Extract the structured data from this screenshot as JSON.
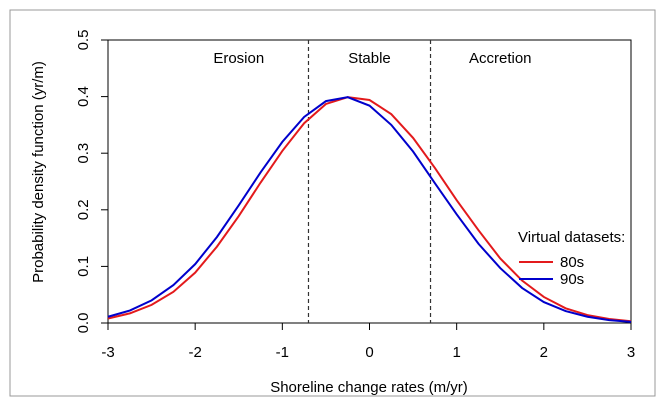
{
  "chart_data": {
    "type": "line",
    "title": "",
    "xlabel": "Shoreline change rates (m/yr)",
    "ylabel": "Probability density function (yr/m)",
    "xlim": [
      -3,
      3
    ],
    "ylim": [
      0,
      0.5
    ],
    "x_ticks": [
      -3,
      -2,
      -1,
      0,
      1,
      2,
      3
    ],
    "y_ticks": [
      0.0,
      0.1,
      0.2,
      0.3,
      0.4,
      0.5
    ],
    "x_tick_labels": [
      "-3",
      "-2",
      "-1",
      "0",
      "1",
      "2",
      "3"
    ],
    "y_tick_labels": [
      "0.0",
      "0.1",
      "0.2",
      "0.3",
      "0.4",
      "0.5"
    ],
    "grid": false,
    "vlines": [
      -0.7,
      0.7
    ],
    "regions": [
      {
        "label": "Erosion",
        "x": -1.5
      },
      {
        "label": "Stable",
        "x": 0
      },
      {
        "label": "Accretion",
        "x": 1.5
      }
    ],
    "legend": {
      "title": "Virtual datasets:",
      "position": "right"
    },
    "series": [
      {
        "name": "80s",
        "color": "#e31a1c",
        "x": [
          -3,
          -2.75,
          -2.5,
          -2.25,
          -2,
          -1.75,
          -1.5,
          -1.25,
          -1,
          -0.75,
          -0.5,
          -0.25,
          0,
          0.25,
          0.5,
          0.75,
          1,
          1.25,
          1.5,
          1.75,
          2,
          2.25,
          2.5,
          2.75,
          3
        ],
        "y": [
          0.008,
          0.017,
          0.032,
          0.055,
          0.089,
          0.135,
          0.189,
          0.248,
          0.304,
          0.353,
          0.387,
          0.399,
          0.394,
          0.369,
          0.327,
          0.274,
          0.217,
          0.164,
          0.114,
          0.075,
          0.046,
          0.026,
          0.014,
          0.007,
          0.003
        ]
      },
      {
        "name": "90s",
        "color": "#0000cc",
        "x": [
          -3,
          -2.75,
          -2.5,
          -2.25,
          -2,
          -1.75,
          -1.5,
          -1.25,
          -1,
          -0.75,
          -0.5,
          -0.25,
          0,
          0.25,
          0.5,
          0.75,
          1,
          1.25,
          1.5,
          1.75,
          2,
          2.25,
          2.5,
          2.75,
          3
        ],
        "y": [
          0.011,
          0.022,
          0.04,
          0.067,
          0.104,
          0.152,
          0.208,
          0.266,
          0.32,
          0.364,
          0.392,
          0.399,
          0.384,
          0.35,
          0.303,
          0.247,
          0.192,
          0.14,
          0.097,
          0.062,
          0.037,
          0.021,
          0.011,
          0.005,
          0.002
        ]
      }
    ]
  }
}
